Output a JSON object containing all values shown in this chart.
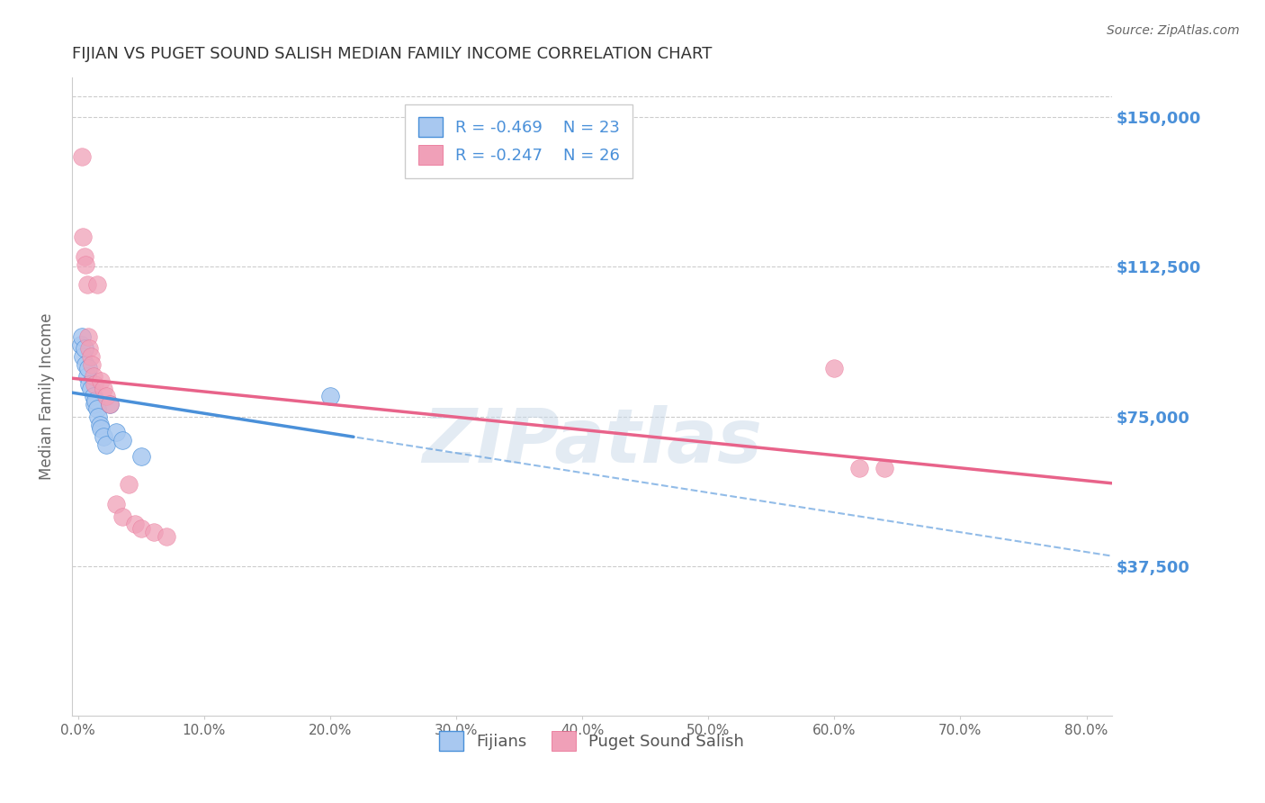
{
  "title": "FIJIAN VS PUGET SOUND SALISH MEDIAN FAMILY INCOME CORRELATION CHART",
  "source": "Source: ZipAtlas.com",
  "ylabel": "Median Family Income",
  "xlabel_ticks": [
    "0.0%",
    "80.0%"
  ],
  "ytick_labels": [
    "$37,500",
    "$75,000",
    "$112,500",
    "$150,000"
  ],
  "ytick_values": [
    37500,
    75000,
    112500,
    150000
  ],
  "ymin": 0,
  "ymax": 160000,
  "xmin": -0.005,
  "xmax": 0.82,
  "legend_blue_r": "R = -0.469",
  "legend_blue_n": "N = 23",
  "legend_pink_r": "R = -0.247",
  "legend_pink_n": "N = 26",
  "legend_label_blue": "Fijians",
  "legend_label_pink": "Puget Sound Salish",
  "watermark": "ZIPatlas",
  "blue_scatter_x": [
    0.002,
    0.003,
    0.004,
    0.005,
    0.006,
    0.007,
    0.008,
    0.009,
    0.01,
    0.012,
    0.013,
    0.014,
    0.015,
    0.016,
    0.017,
    0.018,
    0.02,
    0.022,
    0.025,
    0.03,
    0.035,
    0.05,
    0.2
  ],
  "blue_scatter_y": [
    93000,
    95000,
    90000,
    92000,
    88000,
    85000,
    87000,
    83000,
    82000,
    80000,
    78000,
    79000,
    77000,
    75000,
    73000,
    72000,
    70000,
    68000,
    78000,
    71000,
    69000,
    65000,
    80000
  ],
  "pink_scatter_x": [
    0.003,
    0.004,
    0.005,
    0.006,
    0.007,
    0.008,
    0.009,
    0.01,
    0.011,
    0.012,
    0.013,
    0.015,
    0.018,
    0.02,
    0.022,
    0.025,
    0.03,
    0.035,
    0.04,
    0.045,
    0.05,
    0.06,
    0.07,
    0.6,
    0.62,
    0.64
  ],
  "pink_scatter_y": [
    140000,
    120000,
    115000,
    113000,
    108000,
    95000,
    92000,
    90000,
    88000,
    85000,
    83000,
    108000,
    84000,
    82000,
    80000,
    78000,
    53000,
    50000,
    58000,
    48000,
    47000,
    46000,
    45000,
    87000,
    62000,
    62000
  ],
  "blue_line_color": "#4a90d9",
  "pink_line_color": "#e8638a",
  "blue_scatter_color": "#a8c8f0",
  "pink_scatter_color": "#f0a0b8",
  "grid_color": "#cccccc",
  "background_color": "#ffffff",
  "title_color": "#333333",
  "axis_color": "#666666",
  "right_tick_color": "#4a90d9"
}
